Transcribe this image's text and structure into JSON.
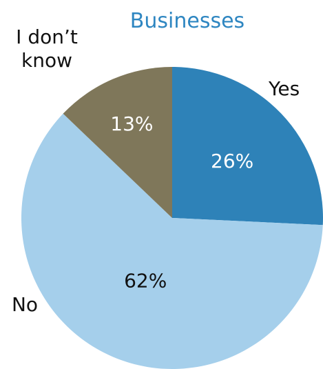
{
  "chart_data": {
    "type": "pie",
    "title": "Businesses",
    "categories": [
      "Yes",
      "No",
      "I don’t know"
    ],
    "values": [
      26,
      62,
      13
    ],
    "data_labels": [
      "26%",
      "62%",
      "13%"
    ],
    "category_label_lines": [
      [
        "Yes"
      ],
      [
        "No"
      ],
      [
        "I don’t",
        "know"
      ]
    ],
    "colors": [
      "#2e82b8",
      "#a5cfeb",
      "#7f775a"
    ],
    "label_colors": [
      "#ffffff",
      "#111111",
      "#ffffff"
    ],
    "start_angle": "12 o'clock",
    "direction": "clockwise",
    "legend": "none"
  }
}
